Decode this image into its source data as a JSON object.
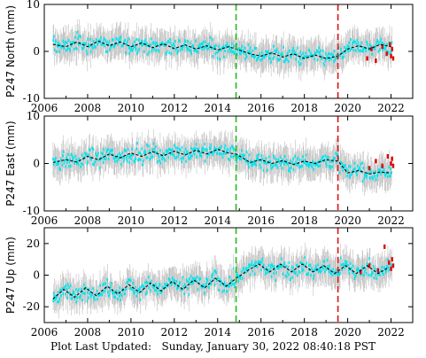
{
  "footer": {
    "label": "Plot Last Updated:",
    "timestamp": "Sunday, January 30, 2022 08:40:18 PST"
  },
  "colors": {
    "data_points": "#00e5ee",
    "error_bars": "#a8a8a8",
    "model_line": "#000000",
    "recent_points": "#e00000",
    "event_line_1": "#22bb22",
    "event_line_2": "#dd1111"
  },
  "chart_data": [
    {
      "type": "scatter",
      "ylabel": "P247 North (mm)",
      "xlim": [
        2006,
        2023
      ],
      "ylim": [
        -10,
        10
      ],
      "yticks": [
        10,
        0,
        -10
      ],
      "xticks": [
        2006,
        2008,
        2010,
        2012,
        2014,
        2016,
        2018,
        2020,
        2022
      ],
      "grid": false,
      "event_lines": [
        2014.85,
        2019.55
      ],
      "series": [
        {
          "role": "model",
          "x": [
            2006.4,
            2007.0,
            2007.5,
            2008.0,
            2008.5,
            2009.0,
            2009.5,
            2010.0,
            2010.5,
            2011.0,
            2011.5,
            2012.0,
            2012.5,
            2013.0,
            2013.5,
            2014.0,
            2014.5,
            2014.85,
            2015.5,
            2016.0,
            2016.5,
            2017.0,
            2017.5,
            2018.0,
            2018.5,
            2019.0,
            2019.55,
            2020.0,
            2020.5,
            2021.0,
            2021.5,
            2022.0
          ],
          "y": [
            1.5,
            1.0,
            2.0,
            1.0,
            2.2,
            1.2,
            2.0,
            1.0,
            1.8,
            0.8,
            1.6,
            0.6,
            1.4,
            0.5,
            1.2,
            0.3,
            1.0,
            0.5,
            -0.5,
            -1.0,
            -0.3,
            -1.2,
            -0.5,
            -1.5,
            -0.8,
            -1.5,
            -1.0,
            0.5,
            1.2,
            0.5,
            1.5,
            1.0
          ]
        },
        {
          "role": "recent",
          "x": [
            2020.9,
            2021.1,
            2021.3,
            2021.6,
            2021.8,
            2021.95,
            2022.0,
            2022.05,
            2022.1
          ],
          "y": [
            -1.5,
            0.5,
            -2.0,
            1.0,
            -0.5,
            1.5,
            -1.0,
            0.5,
            -1.5
          ]
        }
      ]
    },
    {
      "type": "scatter",
      "ylabel": "P247 East (mm)",
      "xlim": [
        2006,
        2023
      ],
      "ylim": [
        -10,
        10
      ],
      "yticks": [
        10,
        0,
        -10
      ],
      "xticks": [
        2006,
        2008,
        2010,
        2012,
        2014,
        2016,
        2018,
        2020,
        2022
      ],
      "grid": false,
      "event_lines": [
        2014.85,
        2019.55
      ],
      "series": [
        {
          "role": "model",
          "x": [
            2006.4,
            2007.0,
            2007.5,
            2008.0,
            2008.5,
            2009.0,
            2009.5,
            2010.0,
            2010.5,
            2011.0,
            2011.5,
            2012.0,
            2012.5,
            2013.0,
            2013.5,
            2014.0,
            2014.5,
            2014.85,
            2015.5,
            2016.0,
            2016.5,
            2017.0,
            2017.5,
            2018.0,
            2018.5,
            2019.0,
            2019.55,
            2020.0,
            2020.5,
            2021.0,
            2021.5,
            2022.0
          ],
          "y": [
            0.2,
            0.8,
            0.3,
            1.5,
            0.8,
            2.0,
            1.2,
            2.2,
            1.5,
            2.5,
            1.6,
            2.6,
            1.8,
            2.8,
            2.0,
            3.0,
            2.2,
            2.0,
            0.2,
            0.8,
            0.0,
            0.6,
            -0.2,
            0.5,
            0.0,
            0.8,
            0.5,
            -2.0,
            -1.5,
            -2.2,
            -1.8,
            -2.0
          ]
        },
        {
          "role": "recent",
          "x": [
            2021.0,
            2021.3,
            2021.6,
            2021.85,
            2022.0,
            2022.05,
            2022.1
          ],
          "y": [
            -1.0,
            0.5,
            -0.5,
            1.5,
            0.0,
            1.0,
            -0.5
          ]
        }
      ]
    },
    {
      "type": "scatter",
      "ylabel": "P247 Up (mm)",
      "xlim": [
        2006,
        2023
      ],
      "ylim": [
        -30,
        30
      ],
      "yticks": [
        20,
        0,
        -20
      ],
      "xticks": [
        2006,
        2008,
        2010,
        2012,
        2014,
        2016,
        2018,
        2020,
        2022
      ],
      "grid": false,
      "event_lines": [
        2014.85,
        2019.55
      ],
      "series": [
        {
          "role": "model",
          "x": [
            2006.4,
            2006.9,
            2007.4,
            2007.9,
            2008.4,
            2008.9,
            2009.4,
            2009.9,
            2010.4,
            2010.9,
            2011.4,
            2011.9,
            2012.4,
            2012.9,
            2013.4,
            2013.9,
            2014.4,
            2014.85,
            2015.4,
            2015.9,
            2016.4,
            2016.9,
            2017.4,
            2017.9,
            2018.4,
            2018.9,
            2019.4,
            2019.9,
            2020.4,
            2020.9,
            2021.4,
            2021.9
          ],
          "y": [
            -15,
            -9,
            -14,
            -8,
            -13,
            -7,
            -12,
            -6,
            -11,
            -5,
            -10,
            -4,
            -9,
            -3,
            -8,
            -2,
            -7,
            -2,
            3,
            7,
            2,
            7,
            2,
            7,
            2,
            6,
            1,
            6,
            1,
            6,
            1,
            5
          ]
        },
        {
          "role": "recent",
          "x": [
            2020.6,
            2021.0,
            2021.4,
            2021.7,
            2021.9,
            2022.0,
            2022.05,
            2022.1
          ],
          "y": [
            2,
            6,
            3,
            18,
            8,
            4,
            10,
            6
          ]
        }
      ]
    }
  ]
}
